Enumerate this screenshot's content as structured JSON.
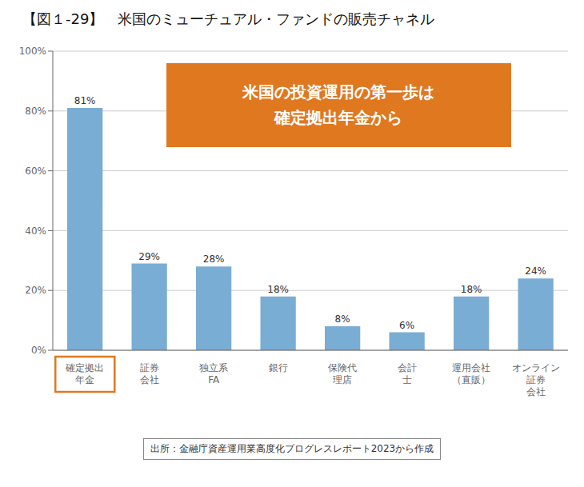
{
  "chart_data": {
    "type": "bar",
    "title": "【図１-29】　米国のミューチュアル・ファンドの販売チャネル",
    "categories": [
      "確定拠出\n年金",
      "証券\n会社",
      "独立系\nFA",
      "銀行",
      "保険代\n理店",
      "会計\n士",
      "運用会社\n（直販）",
      "オンライン\n証券\n会社"
    ],
    "values": [
      81,
      29,
      28,
      18,
      8,
      6,
      18,
      24
    ],
    "value_labels": [
      "81%",
      "29%",
      "28%",
      "18%",
      "8%",
      "6%",
      "18%",
      "24%"
    ],
    "color": "#7aadd4",
    "ylim": [
      0,
      100
    ],
    "yticks": [
      {
        "value": 0,
        "label": "0%"
      },
      {
        "value": 20,
        "label": "20%"
      },
      {
        "value": 40,
        "label": "40%"
      },
      {
        "value": 60,
        "label": "60%"
      },
      {
        "value": 80,
        "label": "80%"
      },
      {
        "value": 100,
        "label": "100%"
      }
    ],
    "grid": true,
    "annotations": [
      {
        "text": "米国の投資運用の第一歩は\n確定拠出年金から",
        "color": "#e07820"
      },
      {
        "text": "出所：金融庁資産運用業高度化プログレスレポート2023から作成"
      }
    ]
  }
}
